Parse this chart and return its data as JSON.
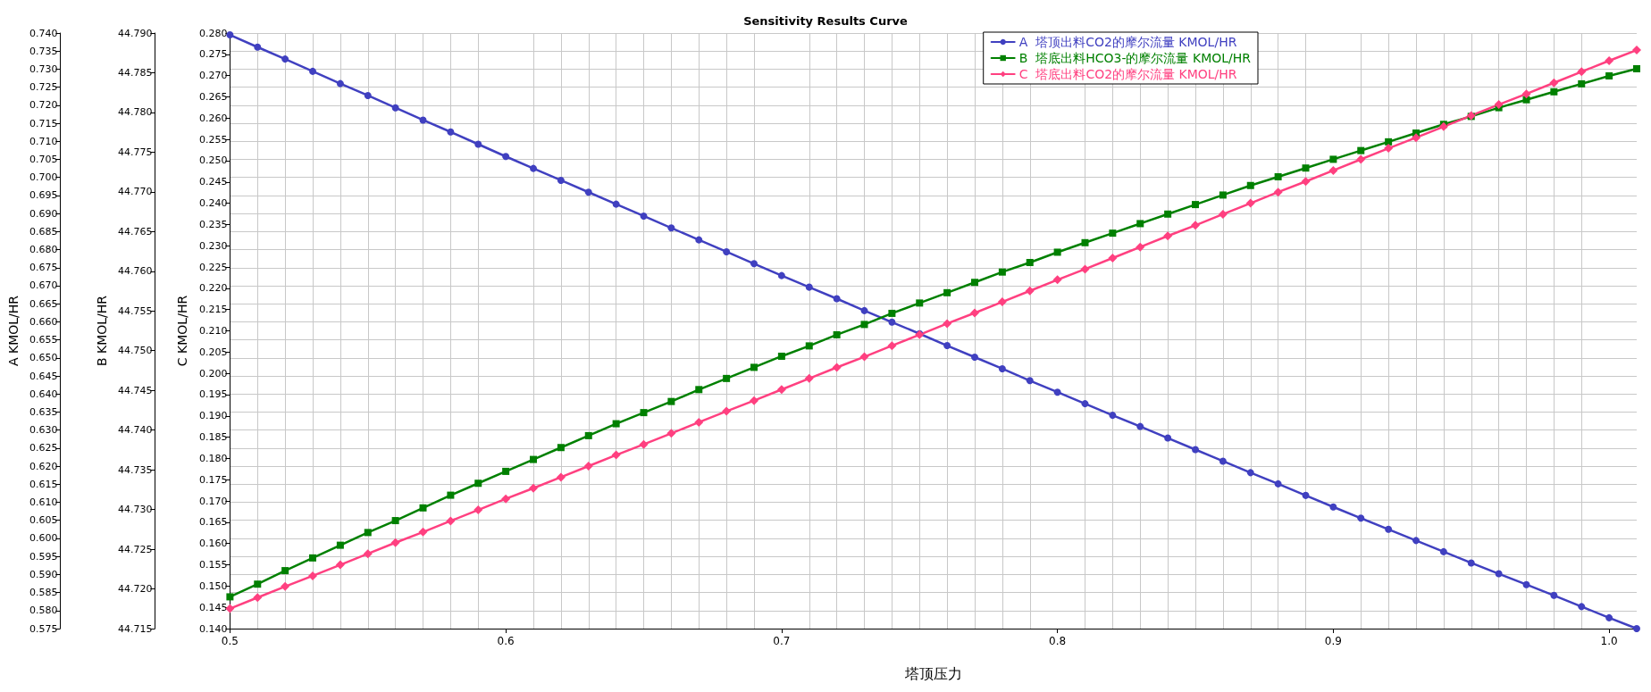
{
  "chart_data": {
    "type": "line",
    "title": "Sensitivity Results Curve",
    "xlabel": "塔顶压力",
    "ylabel": "A KMOL/HR",
    "y2label": "B KMOL/HR",
    "y3label": "C KMOL/HR",
    "x": [
      0.5,
      0.51,
      0.52,
      0.53,
      0.54,
      0.55,
      0.56,
      0.57,
      0.58,
      0.59,
      0.6,
      0.61,
      0.62,
      0.63,
      0.64,
      0.65,
      0.66,
      0.67,
      0.68,
      0.69,
      0.7,
      0.71,
      0.72,
      0.73,
      0.74,
      0.75,
      0.76,
      0.77,
      0.78,
      0.79,
      0.8,
      0.81,
      0.82,
      0.83,
      0.84,
      0.85,
      0.86,
      0.87,
      0.88,
      0.89,
      0.9,
      0.91,
      0.92,
      0.93,
      0.94,
      0.95,
      0.96,
      0.97,
      0.98,
      0.99,
      1.0,
      1.01
    ],
    "series": [
      {
        "name": "A  塔顶出料CO2的摩尔流量 KMOL/HR",
        "color": "#4040c0",
        "marker": "circle",
        "axis": "y",
        "values": [
          0.7395,
          0.7361,
          0.7328,
          0.7294,
          0.726,
          0.7227,
          0.7193,
          0.7159,
          0.7126,
          0.7092,
          0.7058,
          0.7025,
          0.6992,
          0.6959,
          0.6926,
          0.6893,
          0.686,
          0.6827,
          0.6794,
          0.6761,
          0.6728,
          0.6696,
          0.6664,
          0.6631,
          0.6599,
          0.6567,
          0.6534,
          0.6502,
          0.647,
          0.6437,
          0.6405,
          0.6373,
          0.6341,
          0.631,
          0.6278,
          0.6246,
          0.6214,
          0.6182,
          0.6151,
          0.6119,
          0.6087,
          0.6056,
          0.6025,
          0.5994,
          0.5963,
          0.5932,
          0.5902,
          0.5872,
          0.5842,
          0.5811,
          0.578,
          0.575
        ]
      },
      {
        "name": "B  塔底出料HCO3-的摩尔流量 KMOL/HR",
        "color": "#008000",
        "marker": "square",
        "axis": "y2",
        "values": [
          44.719,
          44.7206,
          44.7223,
          44.7239,
          44.7255,
          44.7271,
          44.7286,
          44.7302,
          44.7318,
          44.7333,
          44.7348,
          44.7363,
          44.7378,
          44.7393,
          44.7408,
          44.7422,
          44.7436,
          44.7451,
          44.7465,
          44.7479,
          44.7493,
          44.7506,
          44.752,
          44.7533,
          44.7547,
          44.756,
          44.7573,
          44.7586,
          44.7599,
          44.7611,
          44.7624,
          44.7636,
          44.7648,
          44.766,
          44.7672,
          44.7684,
          44.7696,
          44.7708,
          44.7719,
          44.773,
          44.7741,
          44.7752,
          44.7763,
          44.7774,
          44.7785,
          44.7795,
          44.7806,
          44.7816,
          44.7826,
          44.7836,
          44.7846,
          44.7855
        ]
      },
      {
        "name": "C  塔底出料CO2的摩尔流量 KMOL/HR",
        "color": "#ff4080",
        "marker": "diamond",
        "axis": "y3",
        "values": [
          0.1447,
          0.1473,
          0.1499,
          0.1524,
          0.155,
          0.1576,
          0.1602,
          0.1627,
          0.1653,
          0.1679,
          0.1705,
          0.173,
          0.1756,
          0.1782,
          0.1808,
          0.1833,
          0.1859,
          0.1885,
          0.1911,
          0.1936,
          0.1962,
          0.1988,
          0.2014,
          0.2039,
          0.2065,
          0.2091,
          0.2117,
          0.2142,
          0.2168,
          0.2194,
          0.222,
          0.2245,
          0.2271,
          0.2297,
          0.2323,
          0.2348,
          0.2374,
          0.24,
          0.2426,
          0.2451,
          0.2477,
          0.2503,
          0.2529,
          0.2554,
          0.258,
          0.2606,
          0.2632,
          0.2657,
          0.2683,
          0.2709,
          0.2735,
          0.276
        ]
      }
    ],
    "xlim": [
      0.5,
      1.01
    ],
    "xticks": [
      0.5,
      0.6,
      0.7,
      0.8,
      0.9,
      {
        "value": 1,
        "label": "1.0"
      }
    ],
    "ylim": [
      0.575,
      0.74
    ],
    "yticks": [
      0.575,
      {
        "value": 0.58,
        "label": "0.580"
      },
      0.585,
      {
        "value": 0.59,
        "label": "0.590"
      },
      0.595,
      {
        "value": 0.6,
        "label": "0.600"
      },
      0.605,
      {
        "value": 0.61,
        "label": "0.610"
      },
      0.615,
      {
        "value": 0.62,
        "label": "0.620"
      },
      0.625,
      {
        "value": 0.63,
        "label": "0.630"
      },
      0.635,
      {
        "value": 0.64,
        "label": "0.640"
      },
      0.645,
      {
        "value": 0.65,
        "label": "0.650"
      },
      0.655,
      {
        "value": 0.66,
        "label": "0.660"
      },
      0.665,
      {
        "value": 0.67,
        "label": "0.670"
      },
      0.675,
      {
        "value": 0.68,
        "label": "0.680"
      },
      0.685,
      {
        "value": 0.69,
        "label": "0.690"
      },
      0.695,
      {
        "value": 0.7,
        "label": "0.700"
      },
      0.705,
      {
        "value": 0.71,
        "label": "0.710"
      },
      0.715,
      {
        "value": 0.72,
        "label": "0.720"
      },
      0.725,
      {
        "value": 0.73,
        "label": "0.730"
      },
      0.735,
      {
        "value": 0.74,
        "label": "0.740"
      }
    ],
    "y2lim": [
      44.715,
      44.79
    ],
    "y2ticks": [
      44.715,
      {
        "value": 44.72,
        "label": "44.720"
      },
      44.725,
      {
        "value": 44.73,
        "label": "44.730"
      },
      44.735,
      {
        "value": 44.74,
        "label": "44.740"
      },
      44.745,
      {
        "value": 44.75,
        "label": "44.750"
      },
      44.755,
      {
        "value": 44.76,
        "label": "44.760"
      },
      44.765,
      {
        "value": 44.77,
        "label": "44.770"
      },
      44.775,
      {
        "value": 44.78,
        "label": "44.780"
      },
      44.785,
      {
        "value": 44.79,
        "label": "44.790"
      }
    ],
    "y3lim": [
      0.14,
      0.28
    ],
    "y3ticks": [
      {
        "value": 0.14,
        "label": "0.140"
      },
      0.145,
      {
        "value": 0.15,
        "label": "0.150"
      },
      0.155,
      {
        "value": 0.16,
        "label": "0.160"
      },
      0.165,
      {
        "value": 0.17,
        "label": "0.170"
      },
      0.175,
      {
        "value": 0.18,
        "label": "0.180"
      },
      0.185,
      {
        "value": 0.19,
        "label": "0.190"
      },
      0.195,
      {
        "value": 0.2,
        "label": "0.200"
      },
      0.205,
      {
        "value": 0.21,
        "label": "0.210"
      },
      0.215,
      {
        "value": 0.22,
        "label": "0.220"
      },
      0.225,
      {
        "value": 0.23,
        "label": "0.230"
      },
      0.235,
      {
        "value": 0.24,
        "label": "0.240"
      },
      0.245,
      {
        "value": 0.25,
        "label": "0.250"
      },
      0.255,
      {
        "value": 0.26,
        "label": "0.260"
      },
      0.265,
      {
        "value": 0.27,
        "label": "0.270"
      },
      0.275,
      {
        "value": 0.28,
        "label": "0.280"
      }
    ],
    "grid": true,
    "legend": "top right",
    "line_style": "solid"
  }
}
